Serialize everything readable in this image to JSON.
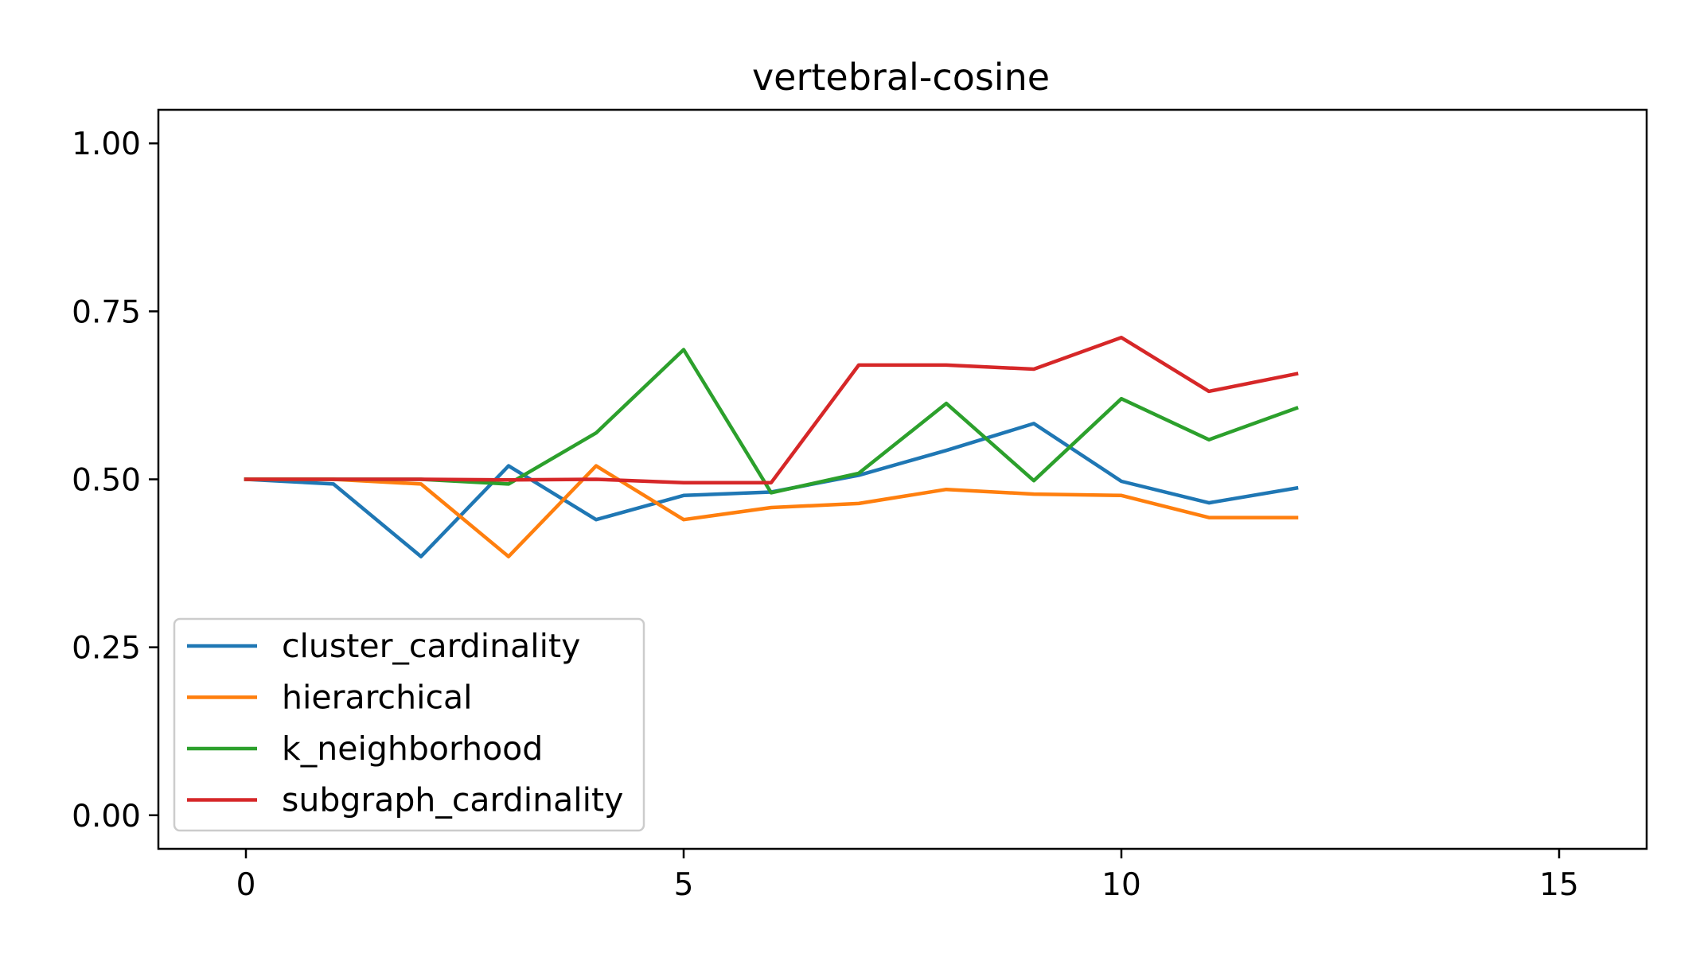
{
  "chart_data": {
    "type": "line",
    "title": "vertebral-cosine",
    "xlabel": "",
    "ylabel": "",
    "xlim": [
      -1,
      16
    ],
    "ylim": [
      -0.05,
      1.05
    ],
    "xticks": [
      0,
      5,
      10,
      15
    ],
    "xtick_labels": [
      "0",
      "5",
      "10",
      "15"
    ],
    "yticks": [
      0.0,
      0.25,
      0.5,
      0.75,
      1.0
    ],
    "ytick_labels": [
      "0.00",
      "0.25",
      "0.50",
      "0.75",
      "1.00"
    ],
    "grid": false,
    "legend_position": "lower-left",
    "x": [
      0,
      1,
      2,
      3,
      4,
      5,
      6,
      7,
      8,
      9,
      10,
      11,
      12
    ],
    "series": [
      {
        "name": "cluster_cardinality",
        "color": "#1f77b4",
        "values": [
          0.5,
          0.493,
          0.385,
          0.52,
          0.44,
          0.476,
          0.481,
          0.506,
          0.543,
          0.583,
          0.497,
          0.465,
          0.487
        ]
      },
      {
        "name": "hierarchical",
        "color": "#ff7f0e",
        "values": [
          0.5,
          0.5,
          0.493,
          0.385,
          0.52,
          0.44,
          0.458,
          0.464,
          0.485,
          0.478,
          0.476,
          0.443,
          0.443
        ]
      },
      {
        "name": "k_neighborhood",
        "color": "#2ca02c",
        "values": [
          0.5,
          0.5,
          0.5,
          0.493,
          0.569,
          0.693,
          0.48,
          0.509,
          0.613,
          0.498,
          0.62,
          0.559,
          0.606
        ]
      },
      {
        "name": "subgraph_cardinality",
        "color": "#d62728",
        "values": [
          0.5,
          0.5,
          0.5,
          0.499,
          0.5,
          0.495,
          0.495,
          0.67,
          0.67,
          0.664,
          0.711,
          0.631,
          0.657
        ]
      }
    ]
  }
}
